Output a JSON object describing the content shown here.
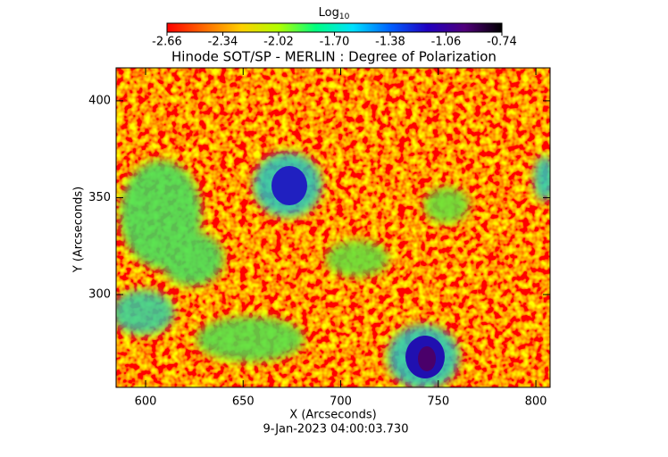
{
  "chart_data": {
    "type": "heatmap",
    "title": "Hinode SOT/SP - MERLIN : Degree of Polarization",
    "x_label": "X (Arcseconds)",
    "y_label": "Y (Arcseconds)",
    "footer": "9-Jan-2023 04:00:03.730",
    "xlim": [
      584.9,
      807.3
    ],
    "xticks": [
      600,
      650,
      700,
      750,
      800
    ],
    "ylim": [
      252.1,
      417
    ],
    "yticks": [
      300,
      350,
      400
    ],
    "colorbar": {
      "label": "Log",
      "label_subscript": "10",
      "lim": [
        -2.66,
        -0.74
      ],
      "ticks": [
        -2.66,
        -2.34,
        -2.02,
        {
          "value": -1.7,
          "label": "-1.70"
        },
        -1.38,
        -1.06,
        -0.74
      ],
      "colormap": [
        "#ff0000",
        "#ff6a00",
        "#ffd000",
        "#b0ff00",
        "#00ff80",
        "#00e0ff",
        "#0060ff",
        "#2000c0",
        "#50007a",
        "#000000"
      ]
    }
  }
}
